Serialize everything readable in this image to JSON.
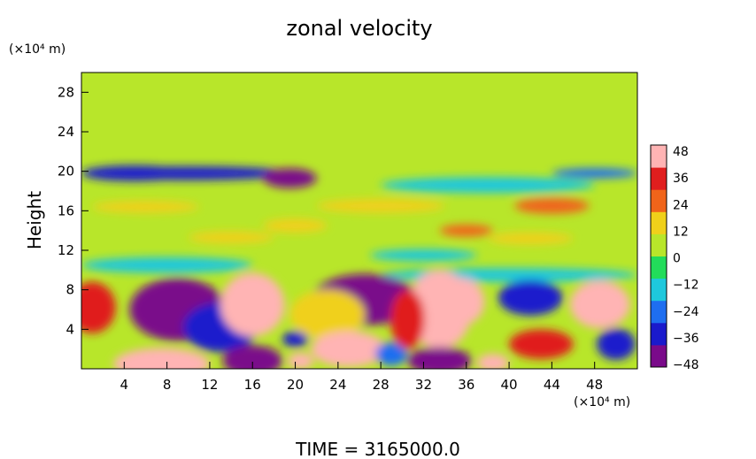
{
  "chart_data": {
    "type": "heatmap",
    "title": "zonal velocity",
    "ylabel": "Height",
    "y_unit": "(×10⁴ m)",
    "x_unit": "(×10⁴ m)",
    "xlim": [
      0,
      52
    ],
    "ylim": [
      0,
      30
    ],
    "x_ticks": [
      4,
      8,
      12,
      16,
      20,
      24,
      28,
      32,
      36,
      40,
      44,
      48
    ],
    "y_ticks": [
      4,
      8,
      12,
      16,
      20,
      24,
      28
    ],
    "x_tick_labels": [
      "4",
      "8",
      "12",
      "16",
      "20",
      "24",
      "28",
      "32",
      "36",
      "40",
      "44",
      "48"
    ],
    "y_tick_labels": [
      "4",
      "8",
      "12",
      "16",
      "20",
      "24",
      "28"
    ],
    "colorbar": {
      "min": -48,
      "max": 48,
      "tick_values": [
        48,
        36,
        24,
        12,
        0,
        -12,
        -24,
        -36,
        -48
      ],
      "tick_labels": [
        "48",
        "36",
        "24",
        "12",
        "0",
        "−12",
        "−24",
        "−36",
        "−48"
      ],
      "colors": [
        "#7a0a8a",
        "#1a1acc",
        "#1e6ef0",
        "#1ec8dc",
        "#22dc5a",
        "#b8e62a",
        "#f0d01a",
        "#f0641a",
        "#e01e1e",
        "#ffb4b4"
      ]
    },
    "background_value": 0,
    "features": [
      {
        "x": 10,
        "y": 19.8,
        "rx": 10,
        "ry": 0.7,
        "value": -38
      },
      {
        "x": 19.5,
        "y": 19.3,
        "rx": 2.5,
        "ry": 1.0,
        "value": -44
      },
      {
        "x": 5,
        "y": 19.8,
        "rx": 5,
        "ry": 0.8,
        "value": -30
      },
      {
        "x": 48,
        "y": 19.8,
        "rx": 4,
        "ry": 0.5,
        "value": -26
      },
      {
        "x": 38,
        "y": 18.6,
        "rx": 10,
        "ry": 0.8,
        "value": -16
      },
      {
        "x": 44,
        "y": 16.5,
        "rx": 3.5,
        "ry": 0.8,
        "value": 26
      },
      {
        "x": 28,
        "y": 16.5,
        "rx": 6,
        "ry": 0.7,
        "value": 14
      },
      {
        "x": 6,
        "y": 16.4,
        "rx": 5,
        "ry": 0.6,
        "value": 14
      },
      {
        "x": 20,
        "y": 14.5,
        "rx": 3,
        "ry": 0.7,
        "value": 16
      },
      {
        "x": 36,
        "y": 14.0,
        "rx": 2.5,
        "ry": 0.6,
        "value": 22
      },
      {
        "x": 14,
        "y": 13.3,
        "rx": 4,
        "ry": 0.6,
        "value": 12
      },
      {
        "x": 42,
        "y": 13.2,
        "rx": 4,
        "ry": 0.6,
        "value": 14
      },
      {
        "x": 32,
        "y": 11.5,
        "rx": 5,
        "ry": 0.6,
        "value": -12
      },
      {
        "x": 8,
        "y": 10.5,
        "rx": 8,
        "ry": 0.8,
        "value": -10
      },
      {
        "x": 40,
        "y": 9.5,
        "rx": 12,
        "ry": 0.7,
        "value": -14
      },
      {
        "x": 9,
        "y": 6.0,
        "rx": 4.5,
        "ry": 3.2,
        "value": -40
      },
      {
        "x": 13,
        "y": 4.2,
        "rx": 3.5,
        "ry": 2.5,
        "value": -30
      },
      {
        "x": 16,
        "y": 6.5,
        "rx": 3.0,
        "ry": 3.2,
        "value": 50
      },
      {
        "x": 26.5,
        "y": 7.0,
        "rx": 5,
        "ry": 2.6,
        "value": -52
      },
      {
        "x": 33.5,
        "y": 6.0,
        "rx": 3.0,
        "ry": 4.0,
        "value": 40
      },
      {
        "x": 35.5,
        "y": 6.8,
        "rx": 2.2,
        "ry": 2.4,
        "value": 50
      },
      {
        "x": 1,
        "y": 6.2,
        "rx": 2.2,
        "ry": 2.6,
        "value": 36
      },
      {
        "x": 42,
        "y": 7.2,
        "rx": 3,
        "ry": 1.8,
        "value": -34
      },
      {
        "x": 48.5,
        "y": 6.5,
        "rx": 2.8,
        "ry": 2.4,
        "value": 50
      },
      {
        "x": 23,
        "y": 5.5,
        "rx": 3.5,
        "ry": 2.5,
        "value": 10
      },
      {
        "x": 7.5,
        "y": 0.5,
        "rx": 4.5,
        "ry": 1.6,
        "value": 50
      },
      {
        "x": 16,
        "y": 0.8,
        "rx": 2.8,
        "ry": 1.6,
        "value": -50
      },
      {
        "x": 20.5,
        "y": 0.8,
        "rx": 1.2,
        "ry": 0.8,
        "value": 44
      },
      {
        "x": 25,
        "y": 2.0,
        "rx": 3.5,
        "ry": 1.8,
        "value": 40
      },
      {
        "x": 33.5,
        "y": 0.8,
        "rx": 3.0,
        "ry": 1.4,
        "value": -52
      },
      {
        "x": 29,
        "y": 1.5,
        "rx": 1.5,
        "ry": 1.2,
        "value": -20
      },
      {
        "x": 38.5,
        "y": 0.6,
        "rx": 1.5,
        "ry": 0.9,
        "value": 50
      },
      {
        "x": 43,
        "y": 2.5,
        "rx": 3,
        "ry": 1.5,
        "value": 30
      },
      {
        "x": 50,
        "y": 2.5,
        "rx": 1.8,
        "ry": 1.6,
        "value": -38
      },
      {
        "x": 20,
        "y": 3.0,
        "rx": 1.2,
        "ry": 0.8,
        "value": -32
      },
      {
        "x": 30.5,
        "y": 5.0,
        "rx": 1.6,
        "ry": 3.0,
        "value": 30
      }
    ]
  },
  "footer": {
    "time_label": "TIME  =  3165000.0"
  }
}
